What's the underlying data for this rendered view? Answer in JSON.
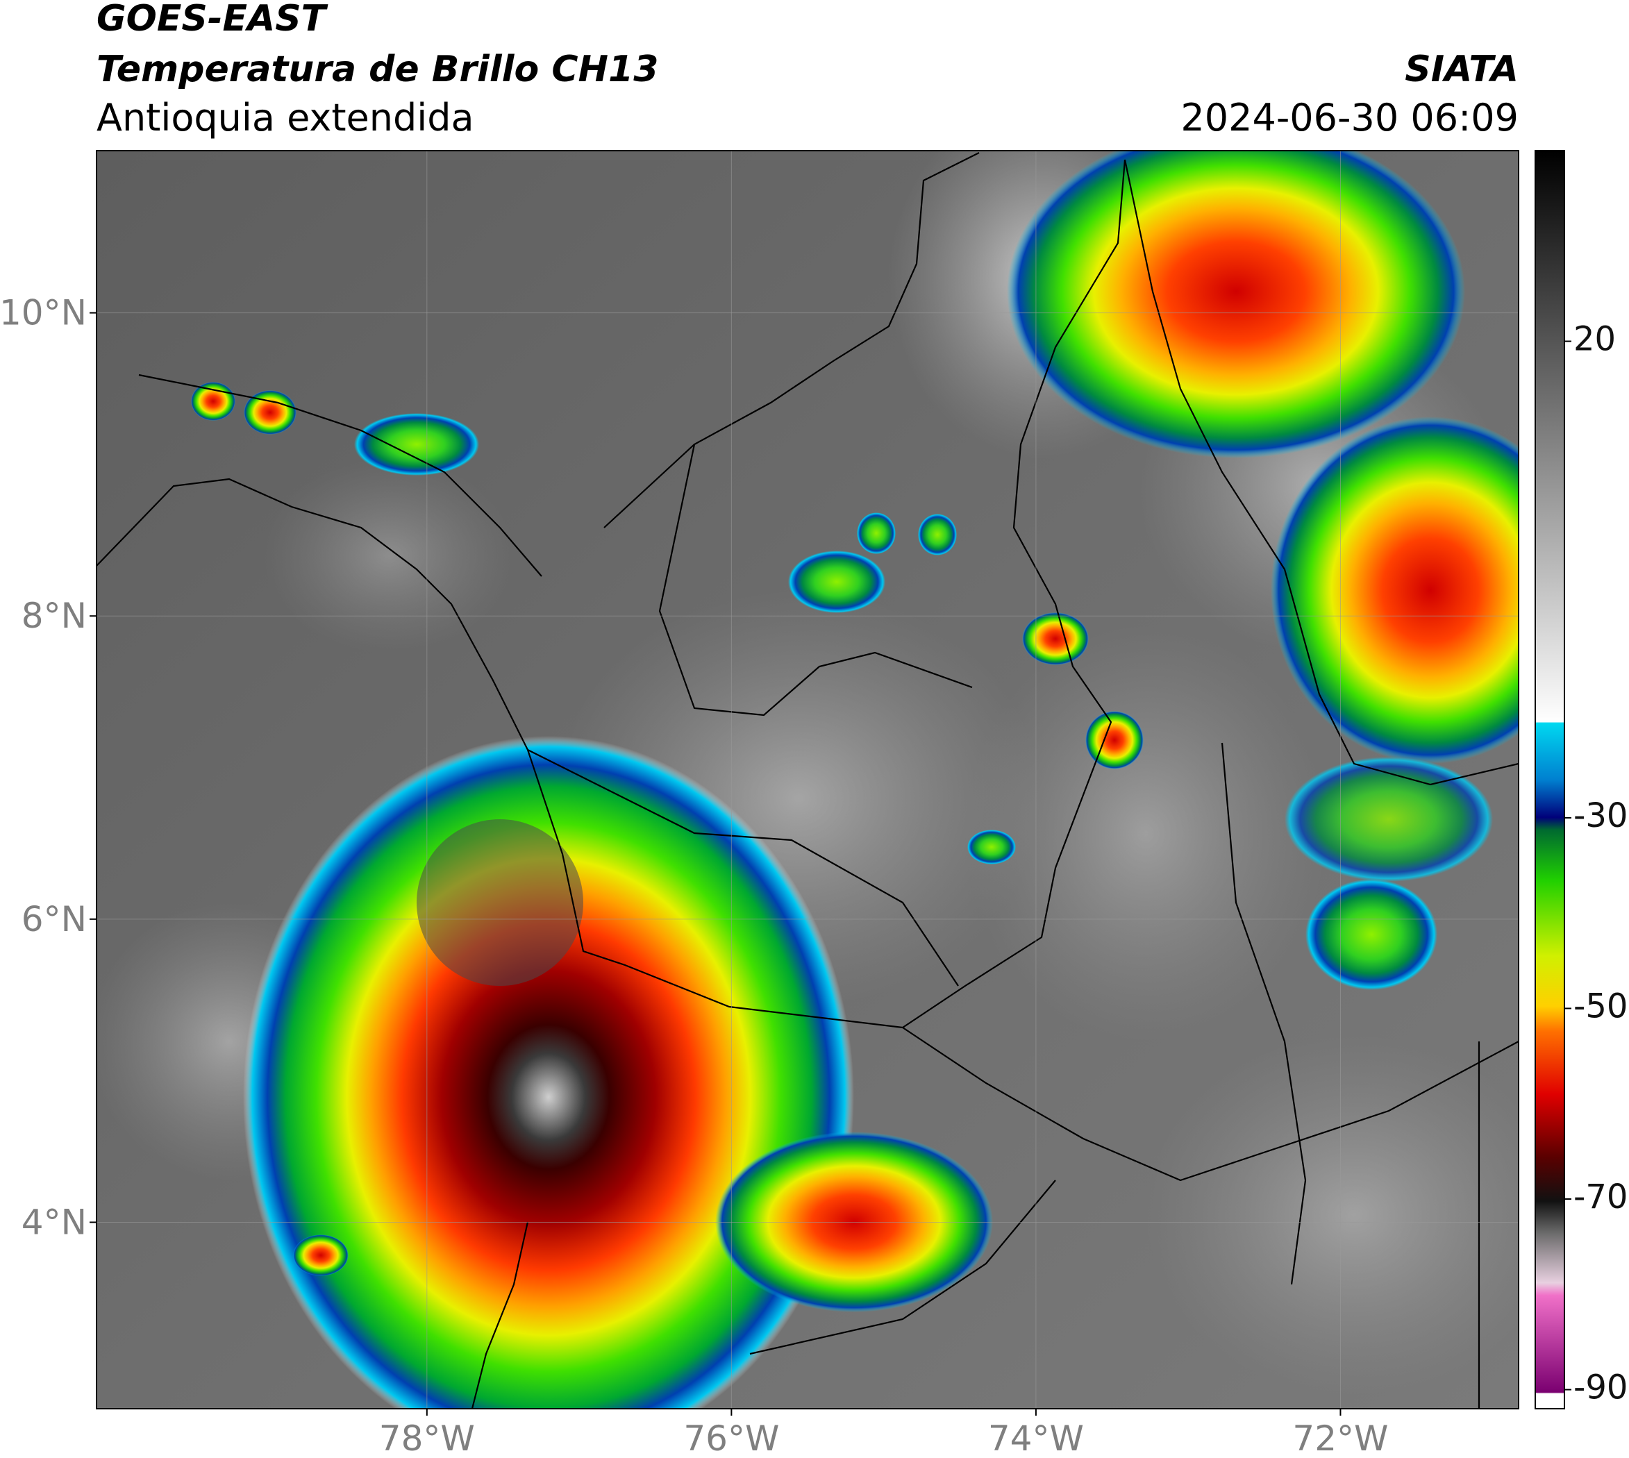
{
  "header": {
    "satellite": "GOES-EAST",
    "product": "Temperatura de Brillo CH13",
    "region": "Antioquia extendida",
    "agency": "SIATA",
    "datetime": "2024-06-30 06:09"
  },
  "map": {
    "xlim": [
      -80.17,
      -70.83
    ],
    "ylim": [
      2.77,
      11.07
    ],
    "xticks": [
      {
        "value": -78,
        "label": "78°W"
      },
      {
        "value": -76,
        "label": "76°W"
      },
      {
        "value": -74,
        "label": "74°W"
      },
      {
        "value": -72,
        "label": "72°W"
      }
    ],
    "yticks": [
      {
        "value": 4,
        "label": "4°N"
      },
      {
        "value": 6,
        "label": "6°N"
      },
      {
        "value": 8,
        "label": "8°N"
      },
      {
        "value": 10,
        "label": "10°N"
      }
    ]
  },
  "colorbar": {
    "lim": [
      -92,
      40
    ],
    "ticks": [
      -90,
      -70,
      -50,
      -30,
      20
    ]
  }
}
